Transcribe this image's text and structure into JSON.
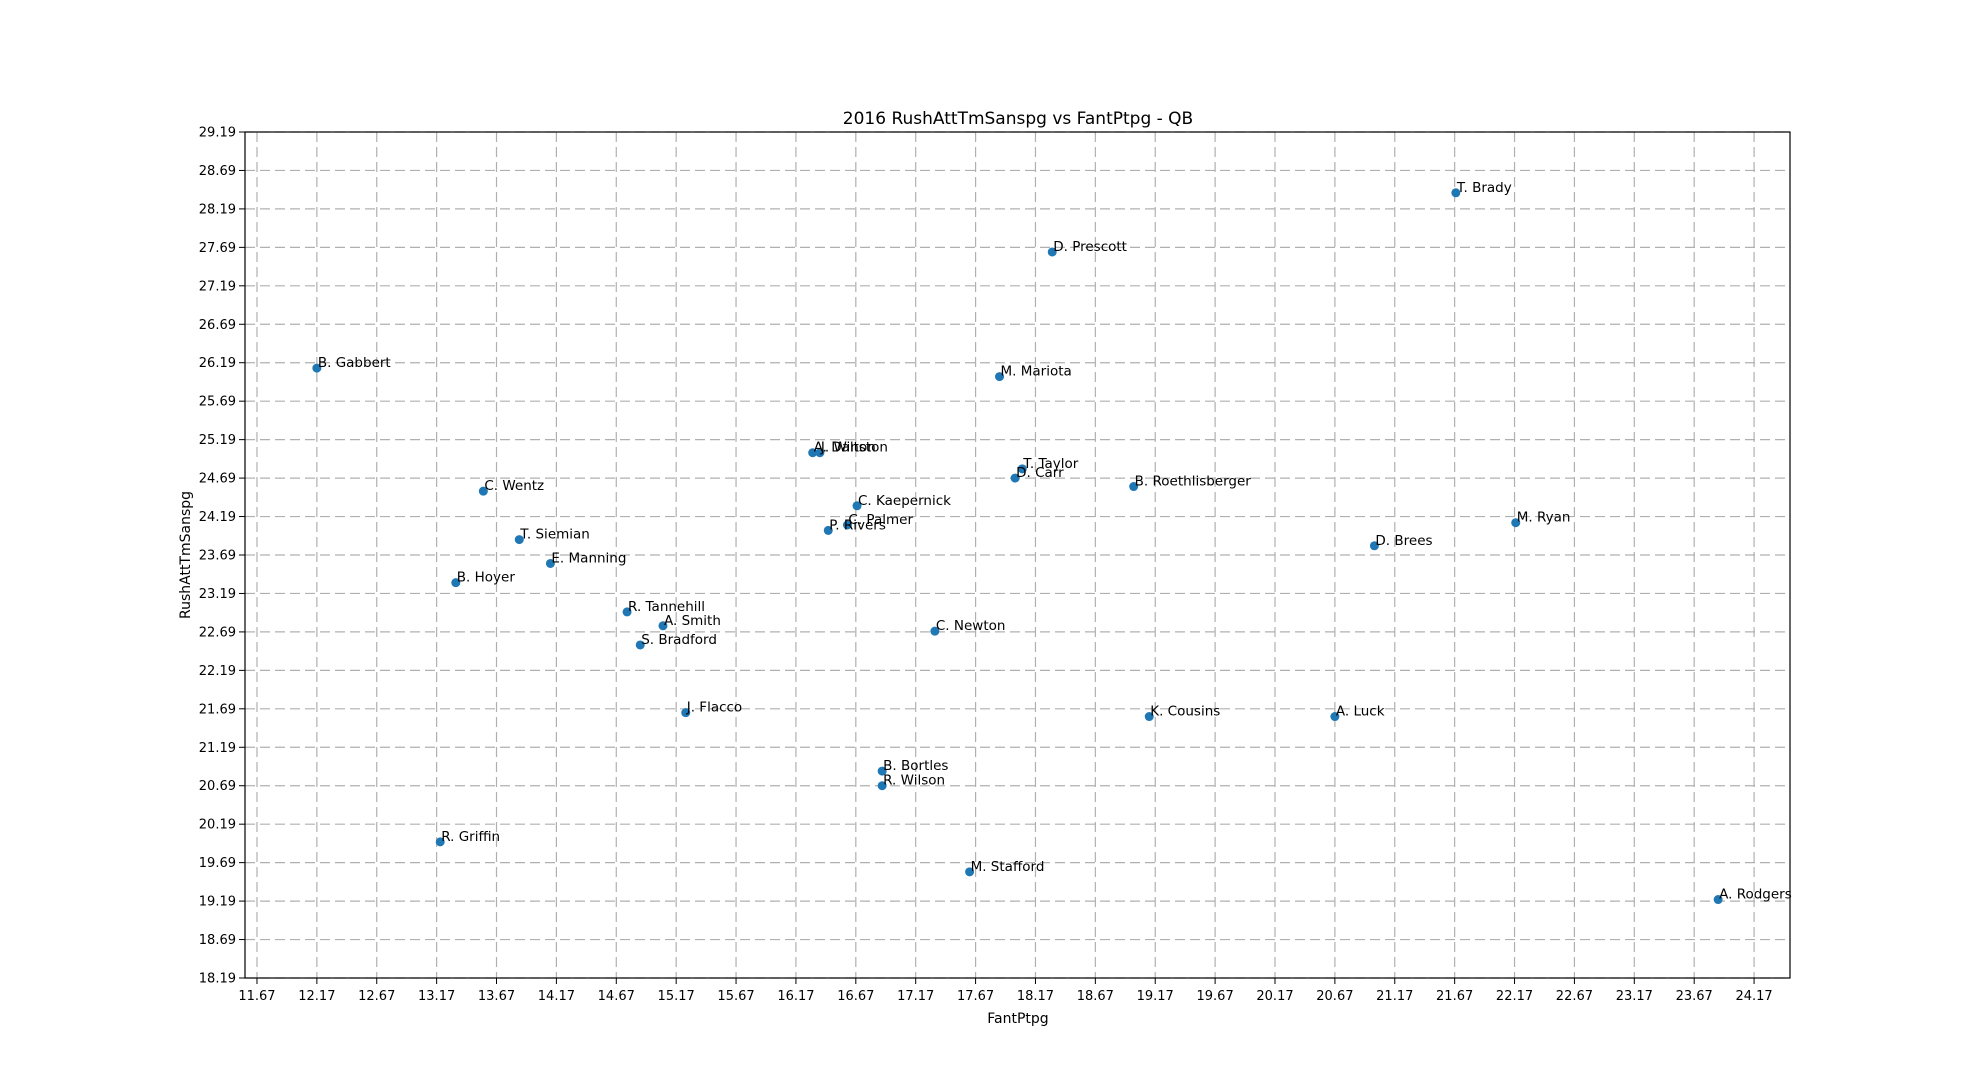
{
  "chart_data": {
    "type": "scatter",
    "title": "2016 RushAttTmSanspg vs FantPtpg - QB",
    "xlabel": "FantPtpg",
    "ylabel": "RushAttTmSanspg",
    "xlim": [
      11.57,
      24.47
    ],
    "ylim": [
      18.19,
      29.19
    ],
    "xticks": [
      "11.67",
      "12.17",
      "12.67",
      "13.17",
      "13.67",
      "14.17",
      "14.67",
      "15.17",
      "15.67",
      "16.17",
      "16.67",
      "17.17",
      "17.67",
      "18.17",
      "18.67",
      "19.17",
      "19.67",
      "20.17",
      "20.67",
      "21.17",
      "21.67",
      "22.17",
      "22.67",
      "23.17",
      "23.67",
      "24.17"
    ],
    "yticks": [
      "18.19",
      "18.69",
      "19.19",
      "19.69",
      "20.19",
      "20.69",
      "21.19",
      "21.69",
      "22.19",
      "22.69",
      "23.19",
      "23.69",
      "24.19",
      "24.69",
      "25.19",
      "25.69",
      "26.19",
      "26.69",
      "27.19",
      "27.69",
      "28.19",
      "28.69",
      "29.19"
    ],
    "grid": true,
    "point_color": "#1f77b4",
    "points": [
      {
        "label": "T. Brady",
        "x": 21.68,
        "y": 28.4
      },
      {
        "label": "D. Prescott",
        "x": 18.31,
        "y": 27.63
      },
      {
        "label": "B. Gabbert",
        "x": 12.17,
        "y": 26.12
      },
      {
        "label": "M. Mariota",
        "x": 17.87,
        "y": 26.01
      },
      {
        "label": "A. Dalton",
        "x": 16.31,
        "y": 25.02
      },
      {
        "label": "J. Winston",
        "x": 16.37,
        "y": 25.02
      },
      {
        "label": "T. Taylor",
        "x": 18.06,
        "y": 24.81
      },
      {
        "label": "D. Carr",
        "x": 18.0,
        "y": 24.69
      },
      {
        "label": "B. Roethlisberger",
        "x": 18.99,
        "y": 24.58
      },
      {
        "label": "C. Wentz",
        "x": 13.56,
        "y": 24.52
      },
      {
        "label": "C. Kaepernick",
        "x": 16.68,
        "y": 24.33
      },
      {
        "label": "M. Ryan",
        "x": 22.18,
        "y": 24.11
      },
      {
        "label": "C. Palmer",
        "x": 16.6,
        "y": 24.08
      },
      {
        "label": "P. Rivers",
        "x": 16.44,
        "y": 24.01
      },
      {
        "label": "T. Siemian",
        "x": 13.86,
        "y": 23.89
      },
      {
        "label": "D. Brees",
        "x": 21.0,
        "y": 23.81
      },
      {
        "label": "E. Manning",
        "x": 14.12,
        "y": 23.58
      },
      {
        "label": "B. Hoyer",
        "x": 13.33,
        "y": 23.33
      },
      {
        "label": "R. Tannehill",
        "x": 14.76,
        "y": 22.95
      },
      {
        "label": "A. Smith",
        "x": 15.06,
        "y": 22.77
      },
      {
        "label": "C. Newton",
        "x": 17.33,
        "y": 22.7
      },
      {
        "label": "S. Bradford",
        "x": 14.87,
        "y": 22.52
      },
      {
        "label": "J. Flacco",
        "x": 15.25,
        "y": 21.64
      },
      {
        "label": "K. Cousins",
        "x": 19.12,
        "y": 21.59
      },
      {
        "label": "A. Luck",
        "x": 20.67,
        "y": 21.59
      },
      {
        "label": "B. Bortles",
        "x": 16.89,
        "y": 20.88
      },
      {
        "label": "R. Wilson",
        "x": 16.89,
        "y": 20.69
      },
      {
        "label": "R. Griffin",
        "x": 13.2,
        "y": 19.96
      },
      {
        "label": "M. Stafford",
        "x": 17.62,
        "y": 19.57
      },
      {
        "label": "A. Rodgers",
        "x": 23.87,
        "y": 19.21
      }
    ]
  }
}
